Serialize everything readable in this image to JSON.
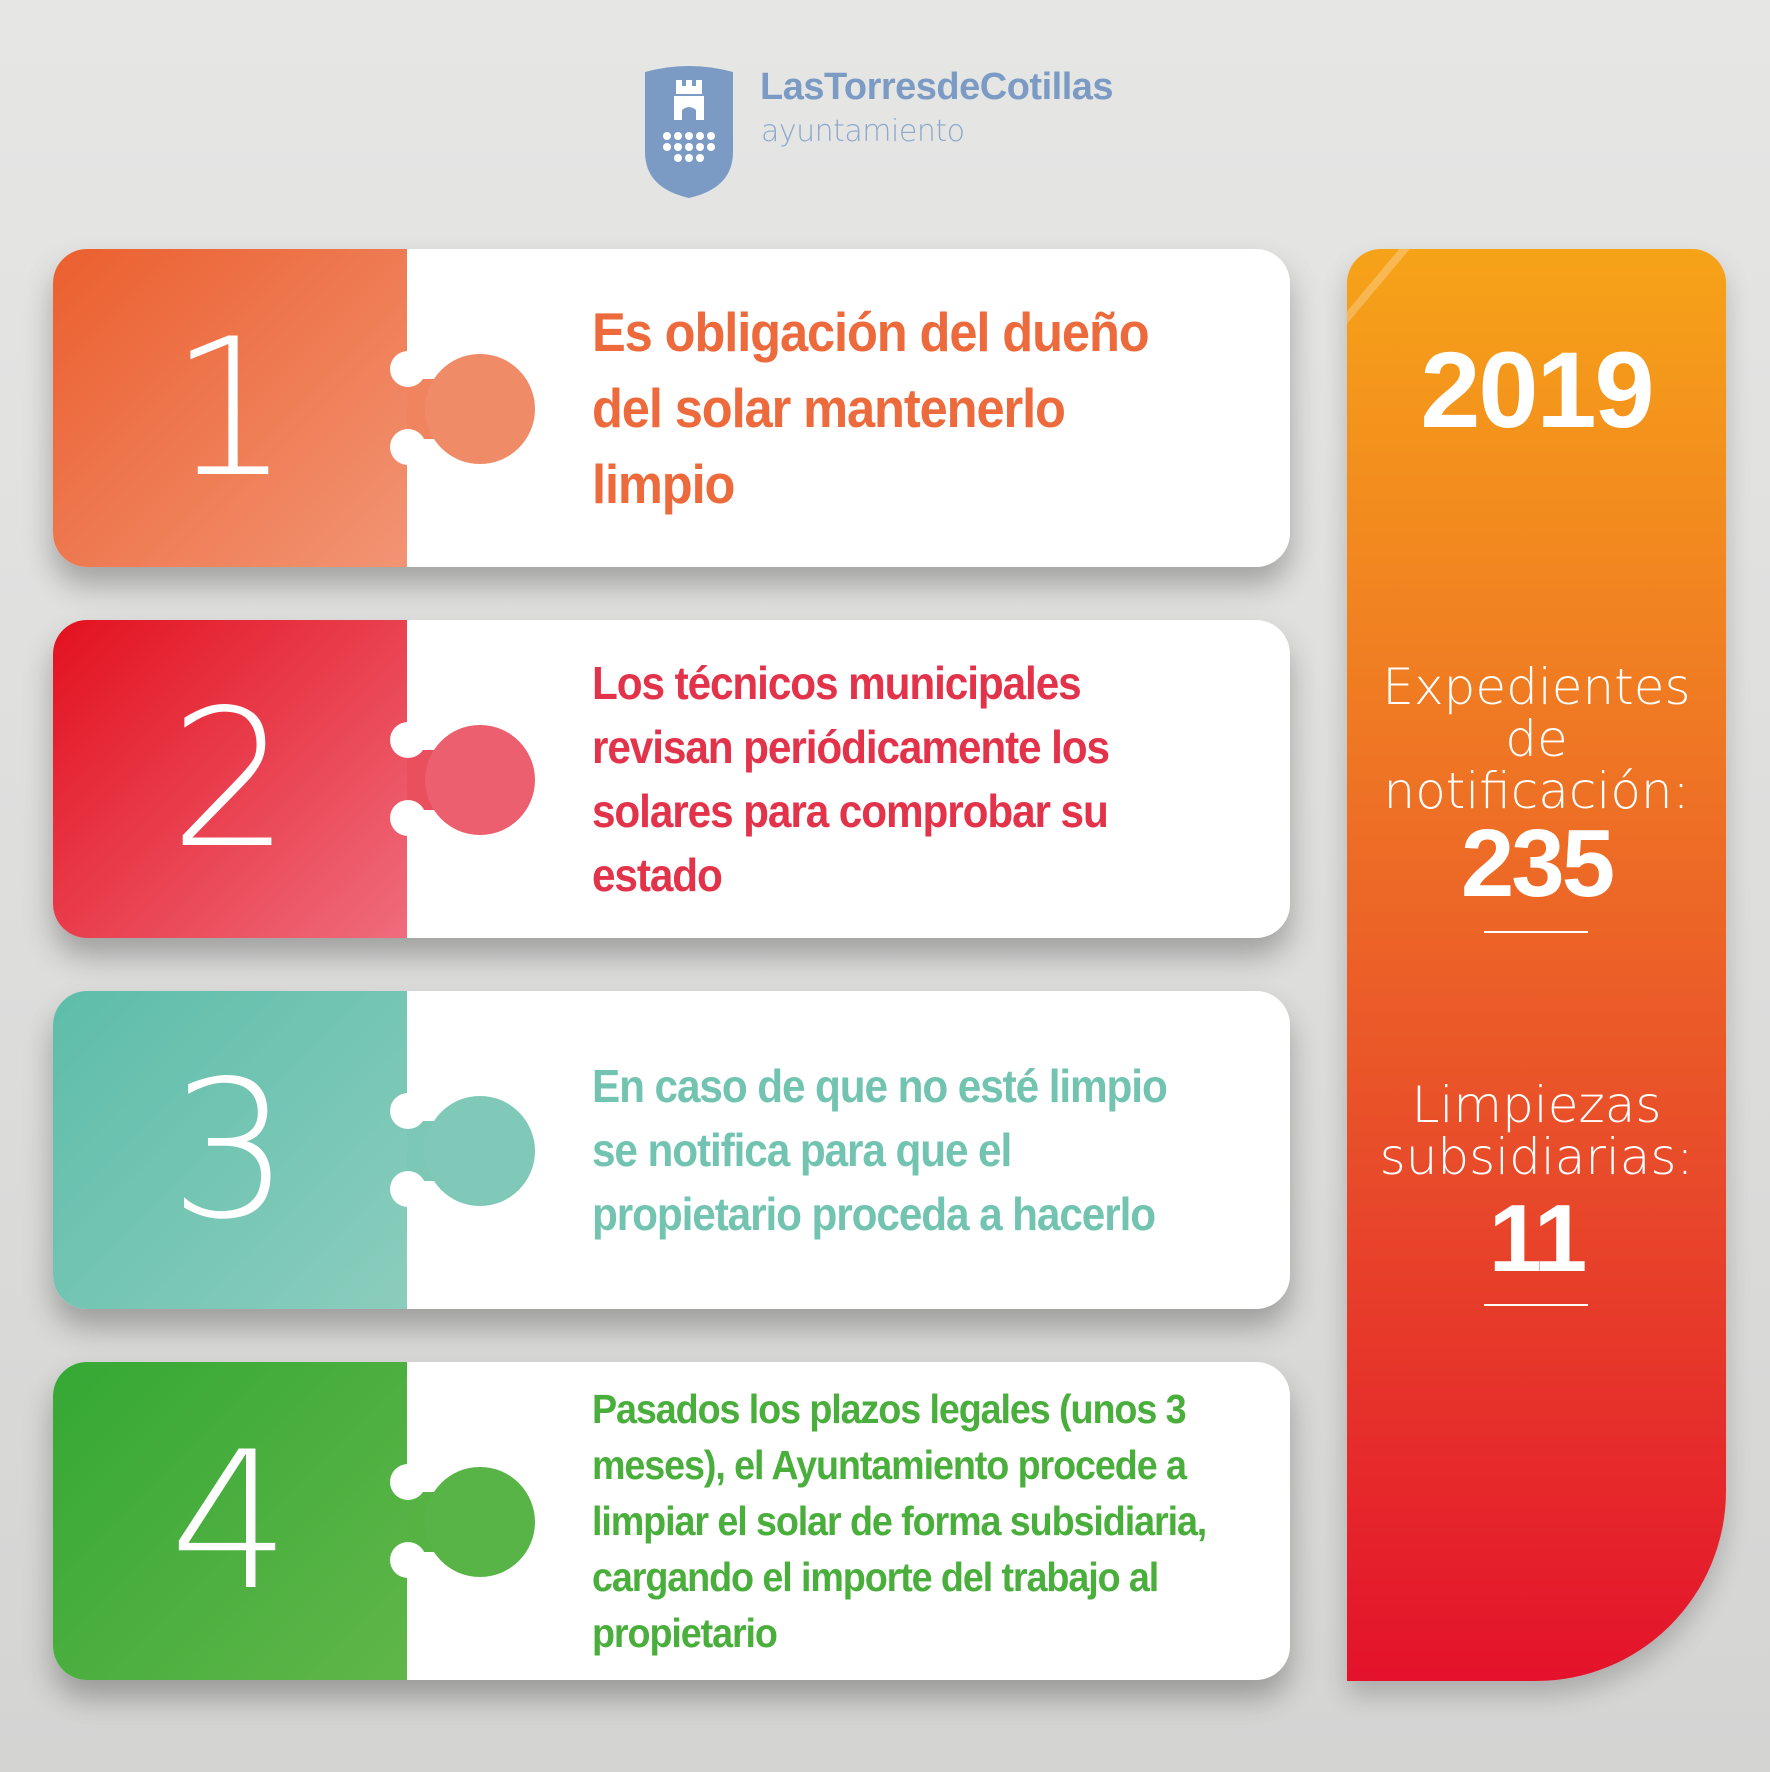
{
  "logo": {
    "title": "LasTorresdeCotillas",
    "subtitle": "ayuntamiento",
    "color": "#7b9bc4"
  },
  "steps": [
    {
      "number": "1",
      "text": "Es obligación del dueño del solar  mantenerlo limpio",
      "color": "#ec6a3c"
    },
    {
      "number": "2",
      "text": "Los técnicos municipales revisan periódicamente los solares para comprobar su estado",
      "color": "#e2334a"
    },
    {
      "number": "3",
      "text": "En caso de que no esté limpio se notifica para que el propietario proceda a hacerlo",
      "color": "#72c4b1"
    },
    {
      "number": "4",
      "text": "Pasados los plazos legales (unos 3 meses), el Ayuntamiento procede a limpiar el solar de forma subsidiaria, cargando el importe del trabajo al propietario",
      "color": "#4aae3c"
    }
  ],
  "stats": {
    "year": "2019",
    "items": [
      {
        "label": "Expedientes de notificación:",
        "value": "235"
      },
      {
        "label": "Limpiezas subsidiarias:",
        "value": "11"
      }
    ]
  }
}
